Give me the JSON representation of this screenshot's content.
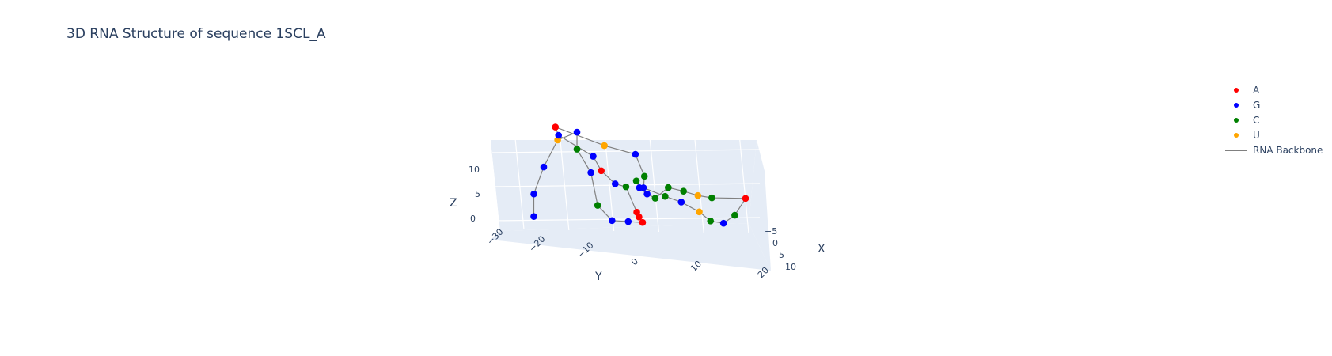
{
  "chart_data": {
    "type": "scatter",
    "title": "3D RNA Structure of sequence 1SCL_A",
    "axes": {
      "x": {
        "label": "X",
        "range": [
          -5,
          15
        ],
        "ticks": [
          "−5",
          "0",
          "5",
          "10"
        ]
      },
      "y": {
        "label": "Y",
        "range": [
          -30,
          20
        ],
        "ticks": [
          "−30",
          "−20",
          "−10",
          "0",
          "10",
          "20"
        ]
      },
      "z": {
        "label": "Z",
        "range": [
          0,
          12
        ],
        "ticks": [
          "0",
          "5",
          "10"
        ]
      }
    },
    "grid": true,
    "legend_position": "top-right",
    "series": [
      {
        "name": "A",
        "color": "#ff0000",
        "marker": "circle"
      },
      {
        "name": "G",
        "color": "#0000ff",
        "marker": "circle"
      },
      {
        "name": "C",
        "color": "#008000",
        "marker": "circle"
      },
      {
        "name": "U",
        "color": "#ffa500",
        "marker": "circle"
      },
      {
        "name": "RNA Backbone",
        "color": "#808080",
        "marker": "line"
      }
    ],
    "sequence": [
      "G",
      "G",
      "G",
      "U",
      "G",
      "C",
      "G",
      "C",
      "G",
      "G",
      "A",
      "A",
      "A",
      "C",
      "G",
      "A",
      "G",
      "G",
      "A",
      "U",
      "G",
      "C",
      "G",
      "C",
      "G",
      "U",
      "C",
      "G",
      "C",
      "A",
      "C",
      "U",
      "C",
      "C",
      "C",
      "G",
      "G",
      "C"
    ],
    "residues": [
      {
        "base": "G",
        "x": 0,
        "y": -27.8,
        "z": 0.3
      },
      {
        "base": "G",
        "x": 0,
        "y": -27.8,
        "z": 3.6
      },
      {
        "base": "G",
        "x": 0,
        "y": -25.6,
        "z": 7.6
      },
      {
        "base": "U",
        "x": 0,
        "y": -22.5,
        "z": 11.6
      },
      {
        "base": "G",
        "x": 0,
        "y": -18.2,
        "z": 12.8
      },
      {
        "base": "C",
        "x": 0,
        "y": -18.2,
        "z": 10.3
      },
      {
        "base": "G",
        "x": 0,
        "y": -15.1,
        "z": 6.9
      },
      {
        "base": "C",
        "x": 0,
        "y": -13.6,
        "z": 2.1
      },
      {
        "base": "G",
        "x": 0,
        "y": -10.4,
        "z": -0.1
      },
      {
        "base": "G",
        "x": 0,
        "y": -6.8,
        "z": -0.2
      },
      {
        "base": "A",
        "x": 0,
        "y": -3.6,
        "z": -0.3
      },
      {
        "base": "A",
        "x": 0,
        "y": -4.4,
        "z": 0.5
      },
      {
        "base": "A",
        "x": 0,
        "y": -4.9,
        "z": 1.2
      },
      {
        "base": "C",
        "x": 0,
        "y": -7.3,
        "z": 4.9
      },
      {
        "base": "G",
        "x": 0,
        "y": -9.7,
        "z": 5.3
      },
      {
        "base": "A",
        "x": 0,
        "y": -12.8,
        "z": 7.2
      },
      {
        "base": "G",
        "x": 0,
        "y": -14.6,
        "z": 9.3
      },
      {
        "base": "G",
        "x": 0,
        "y": -22.3,
        "z": 12.3
      },
      {
        "base": "A",
        "x": 0,
        "y": -23.0,
        "z": 13.5
      },
      {
        "base": "U",
        "x": 0,
        "y": -12.1,
        "z": 10.9
      },
      {
        "base": "G",
        "x": 0,
        "y": -5.2,
        "z": 9.7
      },
      {
        "base": "C",
        "x": 0,
        "y": -3.2,
        "z": 6.5
      },
      {
        "base": "G",
        "x": 0,
        "y": -3.4,
        "z": 4.8
      },
      {
        "base": "C",
        "x": 0,
        "y": 1.4,
        "z": 3.6
      },
      {
        "base": "G",
        "x": 0,
        "y": 5.0,
        "z": 2.8
      },
      {
        "base": "U",
        "x": 0,
        "y": 9.0,
        "z": 1.4
      },
      {
        "base": "C",
        "x": 0,
        "y": 11.5,
        "z": 0.1
      },
      {
        "base": "G",
        "x": 0,
        "y": 14.4,
        "z": -0.2
      },
      {
        "base": "C",
        "x": 0,
        "y": 16.9,
        "z": 1.0
      },
      {
        "base": "A",
        "x": 0,
        "y": 19.3,
        "z": 3.5
      },
      {
        "base": "C",
        "x": 0,
        "y": 11.8,
        "z": 3.5
      },
      {
        "base": "U",
        "x": 0,
        "y": 8.7,
        "z": 3.8
      },
      {
        "base": "C",
        "x": 0,
        "y": 5.5,
        "z": 4.4
      },
      {
        "base": "C",
        "x": 0,
        "y": 2.1,
        "z": 4.9
      },
      {
        "base": "C",
        "x": 0,
        "y": -0.8,
        "z": 3.3
      },
      {
        "base": "G",
        "x": 0,
        "y": -2.6,
        "z": 3.9
      },
      {
        "base": "G",
        "x": 0,
        "y": -4.3,
        "z": 4.8
      },
      {
        "base": "C",
        "x": 0,
        "y": -5.0,
        "z": 5.8
      }
    ]
  }
}
